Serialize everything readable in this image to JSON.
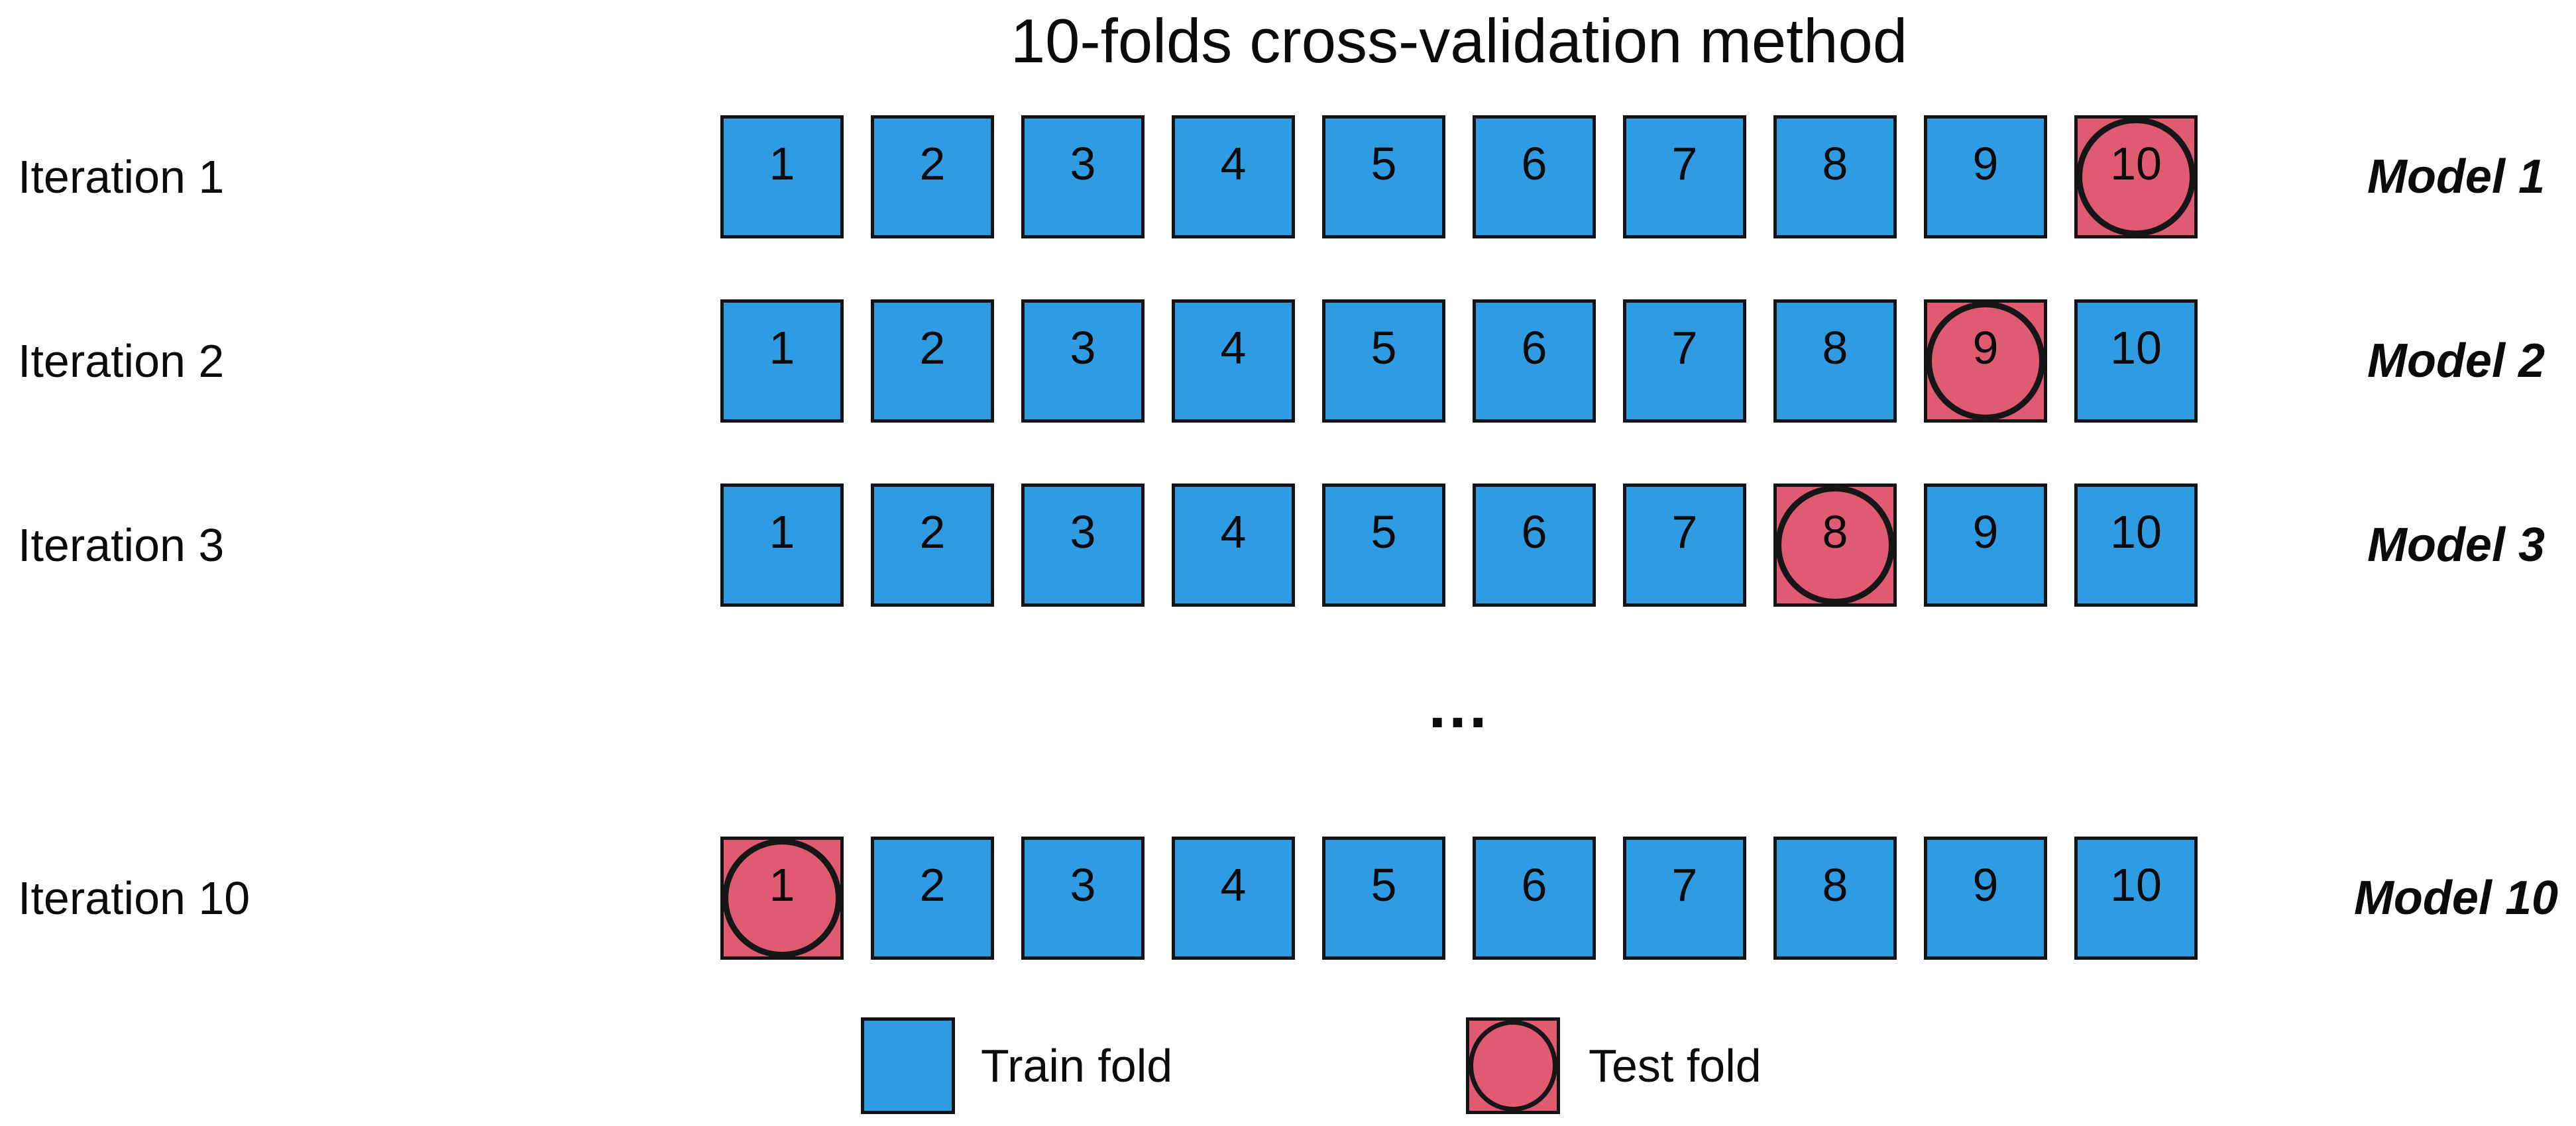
{
  "title": "10-folds cross-validation method",
  "ellipsis": "...",
  "fold_count": 10,
  "iterations": [
    {
      "label": "Iteration 1",
      "test_fold": 10,
      "model": "Model 1"
    },
    {
      "label": "Iteration 2",
      "test_fold": 9,
      "model": "Model 2"
    },
    {
      "label": "Iteration 3",
      "test_fold": 8,
      "model": "Model 3"
    },
    {
      "label": "Iteration 10",
      "test_fold": 1,
      "model": "Model 10"
    }
  ],
  "legend": {
    "train_label": "Train fold",
    "test_label": "Test fold"
  },
  "colors": {
    "train_fill": "#2E9BE2",
    "test_fill": "#E05B72",
    "stroke": "#141414",
    "circle_stroke": "#161616"
  }
}
